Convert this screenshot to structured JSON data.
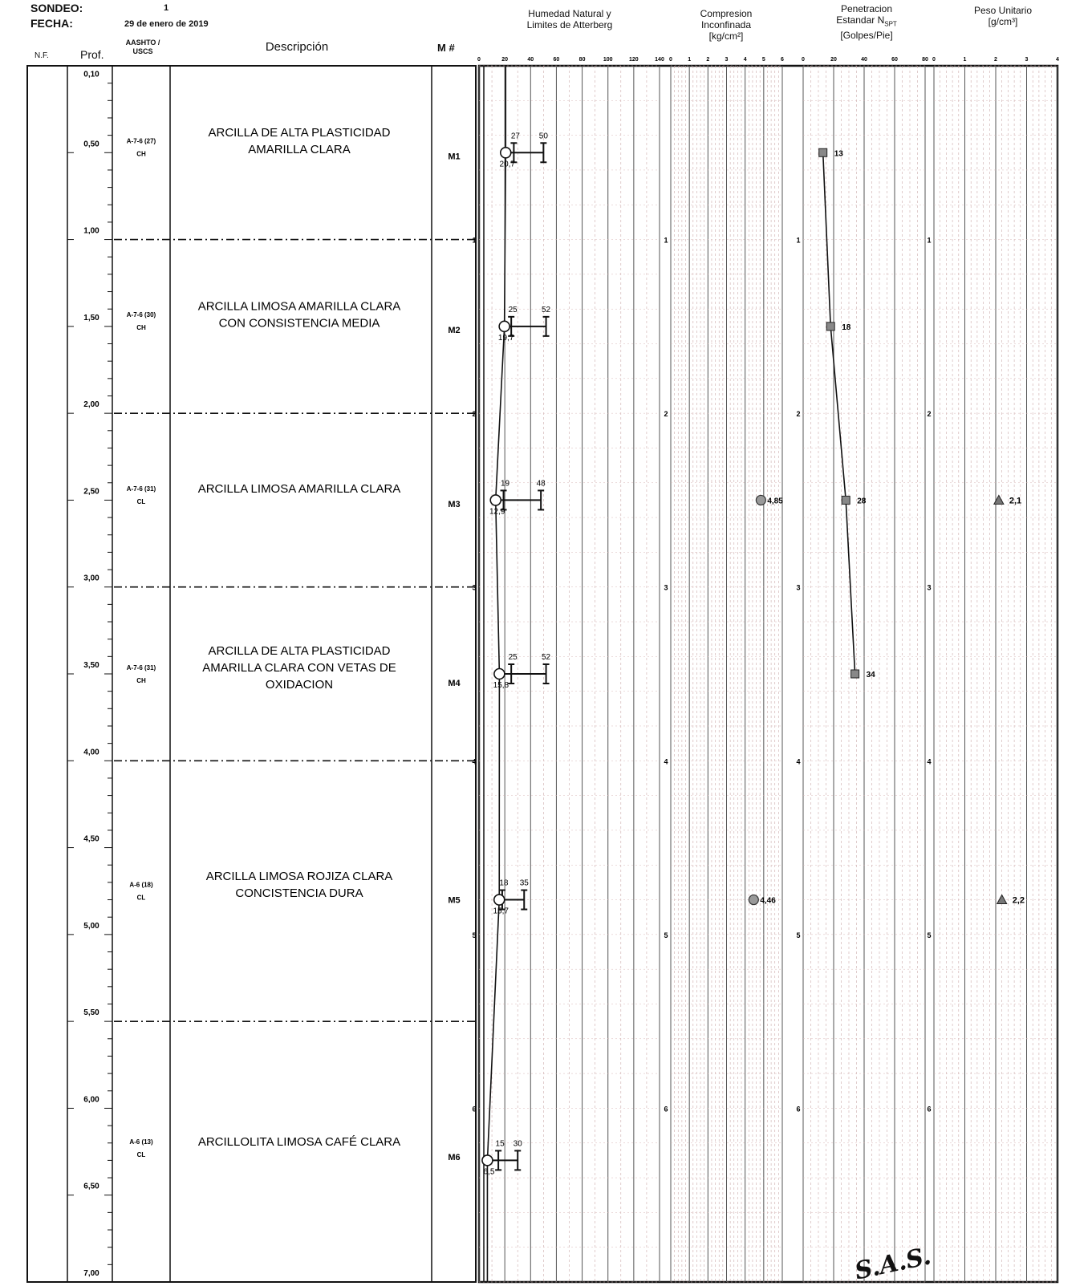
{
  "header": {
    "sondeo_label": "SONDEO:",
    "sondeo_value": "1",
    "fecha_label": "FECHA:",
    "fecha_value": "29 de enero de 2019"
  },
  "columns": {
    "nf": "N.F.",
    "prof": "Prof.",
    "class_line1": "AASHTO /",
    "class_line2": "USCS",
    "descripcion": "Descripción",
    "muestra": "M #",
    "humedad_line1": "Humedad Natural y",
    "humedad_line2": "Limites  de Atterberg",
    "compresion_line1": "Compresion",
    "compresion_line2": "Inconfinada",
    "compresion_line3": "[kg/cm²]",
    "penetracion_line1": "Penetracion",
    "penetracion_line2": "Estandar N",
    "penetracion_sub": "SPT",
    "penetracion_line3": "[Golpes/Pie]",
    "peso_line1": "Peso Unitario",
    "peso_line2": "[g/cm³]"
  },
  "depth_labels": [
    "0,10",
    "0,50",
    "1,00",
    "1,50",
    "2,00",
    "2,50",
    "3,00",
    "3,50",
    "4,00",
    "4,50",
    "5,00",
    "5,50",
    "6,00",
    "6,50",
    "7,00"
  ],
  "layers": [
    {
      "class1": "A-7-6 (27)",
      "class2": "CH",
      "desc": [
        "ARCILLA DE ALTA PLASTICIDAD",
        "AMARILLA CLARA"
      ],
      "sample": "M1"
    },
    {
      "class1": "A-7-6 (30)",
      "class2": "CH",
      "desc": [
        "ARCILLA LIMOSA AMARILLA CLARA",
        "CON CONSISTENCIA MEDIA"
      ],
      "sample": "M2"
    },
    {
      "class1": "A-7-6 (31)",
      "class2": "CL",
      "desc": [
        "ARCILLA LIMOSA AMARILLA CLARA"
      ],
      "sample": "M3"
    },
    {
      "class1": "A-7-6 (31)",
      "class2": "CH",
      "desc": [
        "ARCILLA DE ALTA PLASTICIDAD",
        "AMARILLA CLARA CON VETAS DE",
        "OXIDACION"
      ],
      "sample": "M4"
    },
    {
      "class1": "A-6 (18)",
      "class2": "CL",
      "desc": [
        "ARCILLA LIMOSA ROJIZA CLARA",
        "CONCISTENCIA DURA"
      ],
      "sample": "M5"
    },
    {
      "class1": "A-6 (13)",
      "class2": "CL",
      "desc": [
        "ARCILLOLITA LIMOSA CAFÉ CLARA"
      ],
      "sample": "M6"
    }
  ],
  "chart_data": [
    {
      "type": "line",
      "title": "Humedad Natural y Limites  de Atterberg",
      "xlim": [
        0,
        140
      ],
      "x_ticks": [
        "0",
        "20",
        "40",
        "60",
        "80",
        "100",
        "120",
        "140"
      ],
      "ylim": [
        0,
        7
      ],
      "depth_ticks": [
        "1",
        "2",
        "3",
        "4",
        "5",
        "6"
      ],
      "samples": [
        {
          "depth": 0.5,
          "moisture": 20.7,
          "moisture_label": "20,7",
          "pl": 27,
          "ll": 50
        },
        {
          "depth": 1.5,
          "moisture": 19.7,
          "moisture_label": "19,7",
          "pl": 25,
          "ll": 52
        },
        {
          "depth": 2.5,
          "moisture": 12.9,
          "moisture_label": "12,9",
          "pl": 19,
          "ll": 48
        },
        {
          "depth": 3.5,
          "moisture": 15.8,
          "moisture_label": "15,8",
          "pl": 25,
          "ll": 52
        },
        {
          "depth": 4.8,
          "moisture": 15.7,
          "moisture_label": "15,7",
          "pl": 18,
          "ll": 35
        },
        {
          "depth": 6.3,
          "moisture": 6.5,
          "moisture_label": "6,5",
          "pl": 15,
          "ll": 30
        }
      ]
    },
    {
      "type": "scatter",
      "title": "Compresion Inconfinada [kg/cm²]",
      "xlim": [
        0,
        6
      ],
      "x_ticks": [
        "0",
        "1",
        "2",
        "3",
        "4",
        "5",
        "6"
      ],
      "ylim": [
        0,
        7
      ],
      "depth_ticks": [
        "1",
        "2",
        "3",
        "4",
        "5",
        "6"
      ],
      "points": [
        {
          "depth": 2.5,
          "value": 4.85,
          "label": "4,85"
        },
        {
          "depth": 4.8,
          "value": 4.46,
          "label": "4,46"
        }
      ]
    },
    {
      "type": "line",
      "title": "Penetracion Estandar N SPT [Golpes/Pie]",
      "xlim": [
        0,
        80
      ],
      "x_ticks": [
        "0",
        "20",
        "40",
        "60",
        "80"
      ],
      "ylim": [
        0,
        7
      ],
      "depth_ticks": [
        "1",
        "2",
        "3",
        "4",
        "5",
        "6"
      ],
      "points": [
        {
          "depth": 0.5,
          "value": 13,
          "label": "13"
        },
        {
          "depth": 1.5,
          "value": 18,
          "label": "18"
        },
        {
          "depth": 2.5,
          "value": 28,
          "label": "28"
        },
        {
          "depth": 3.5,
          "value": 34,
          "label": "34"
        }
      ]
    },
    {
      "type": "scatter",
      "title": "Peso Unitario [g/cm³]",
      "xlim": [
        0,
        4
      ],
      "x_ticks": [
        "0",
        "1",
        "2",
        "3",
        "4"
      ],
      "ylim": [
        0,
        7
      ],
      "depth_ticks": [
        "1",
        "2",
        "3",
        "4",
        "5",
        "6"
      ],
      "points": [
        {
          "depth": 2.5,
          "value": 2.1,
          "label": "2,1"
        },
        {
          "depth": 4.8,
          "value": 2.2,
          "label": "2,2"
        }
      ]
    }
  ],
  "signature_text": "S.A.S."
}
